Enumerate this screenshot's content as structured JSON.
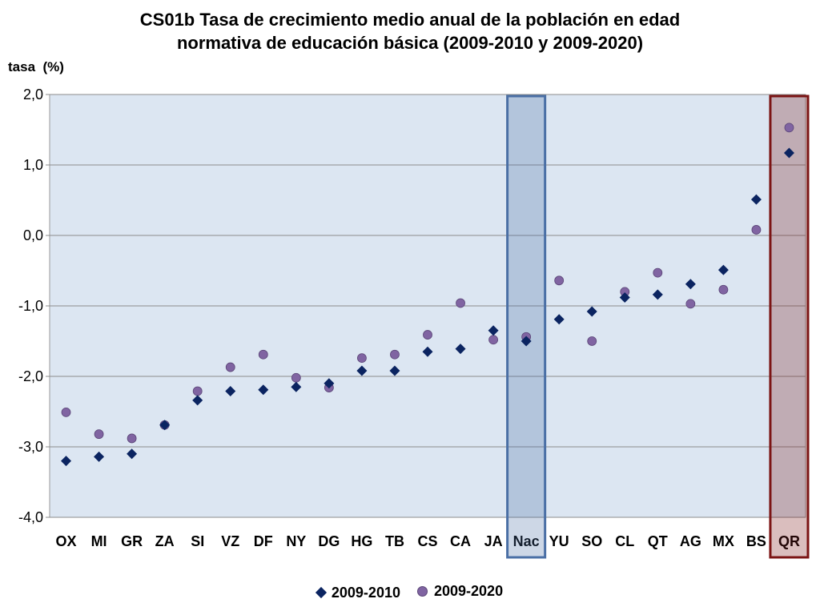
{
  "chart_data": {
    "type": "scatter",
    "title_line1": "CS01b Tasa de crecimiento medio anual de la población en edad",
    "title_line2": "normativa de educación básica (2009-2010 y 2009-2020)",
    "ylabel": "tasa  (%)",
    "xlabel": "",
    "ylim": [
      -4.0,
      2.0
    ],
    "yticks": [
      "2,0",
      "1,0",
      "0,0",
      "-1,0",
      "-2,0",
      "-3,0",
      "-4,0"
    ],
    "ytick_values": [
      2,
      1,
      0,
      -1,
      -2,
      -3,
      -4
    ],
    "grid": true,
    "legend_position": "bottom",
    "categories": [
      "OX",
      "MI",
      "GR",
      "ZA",
      "SI",
      "VZ",
      "DF",
      "NY",
      "DG",
      "HG",
      "TB",
      "CS",
      "CA",
      "JA",
      "Nac",
      "YU",
      "SO",
      "CL",
      "QT",
      "AG",
      "MX",
      "BS",
      "QR"
    ],
    "highlighted": [
      {
        "category": "Nac",
        "color": "#4a6fa5"
      },
      {
        "category": "QR",
        "color": "#7b1414"
      }
    ],
    "series": [
      {
        "name": "2009-2010",
        "marker": "diamond",
        "color": "#0b2461",
        "values": [
          -3.2,
          -3.14,
          -3.1,
          -2.69,
          -2.34,
          -2.21,
          -2.19,
          -2.15,
          -2.1,
          -1.92,
          -1.92,
          -1.65,
          -1.61,
          -1.35,
          -1.5,
          -1.19,
          -1.08,
          -0.88,
          -0.84,
          -0.69,
          -0.49,
          0.51,
          1.17
        ]
      },
      {
        "name": "2009-2020",
        "marker": "circle",
        "color": "#8064a2",
        "values": [
          -2.51,
          -2.82,
          -2.88,
          -2.69,
          -2.21,
          -1.87,
          -1.69,
          -2.02,
          -2.16,
          -1.74,
          -1.69,
          -1.41,
          -0.96,
          -1.48,
          -1.44,
          -0.64,
          -1.5,
          -0.8,
          -0.53,
          -0.97,
          -0.77,
          0.08,
          1.53
        ]
      }
    ]
  }
}
